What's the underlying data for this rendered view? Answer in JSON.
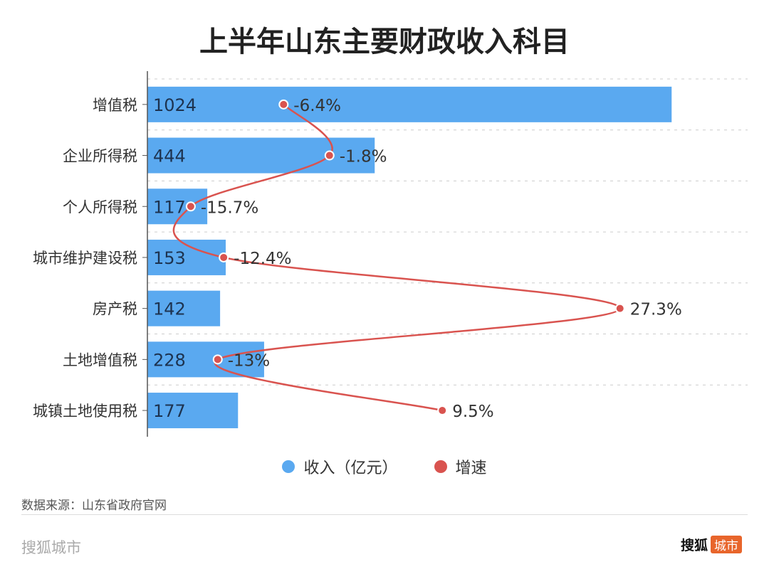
{
  "title": "上半年山东主要财政收入科目",
  "chart_data": {
    "type": "bar",
    "orientation": "horizontal",
    "title": "上半年山东主要财政收入科目",
    "categories": [
      "增值税",
      "企业所得税",
      "个人所得税",
      "城市维护建设税",
      "房产税",
      "土地增值税",
      "城镇土地使用税"
    ],
    "series": [
      {
        "name": "收入（亿元）",
        "type": "bar",
        "values": [
          1024,
          444,
          117,
          153,
          142,
          228,
          177
        ],
        "color": "#5aa9f0"
      },
      {
        "name": "增速",
        "type": "line",
        "unit": "%",
        "values": [
          -6.4,
          -1.8,
          -15.7,
          -12.4,
          27.3,
          -13,
          9.5
        ],
        "color": "#d9534f"
      }
    ],
    "legend_position": "bottom",
    "grid": true
  },
  "source": "数据来源：山东省政府官网",
  "brand_left": "搜狐城市",
  "brand_right": {
    "name": "搜狐",
    "tag": "城市"
  }
}
